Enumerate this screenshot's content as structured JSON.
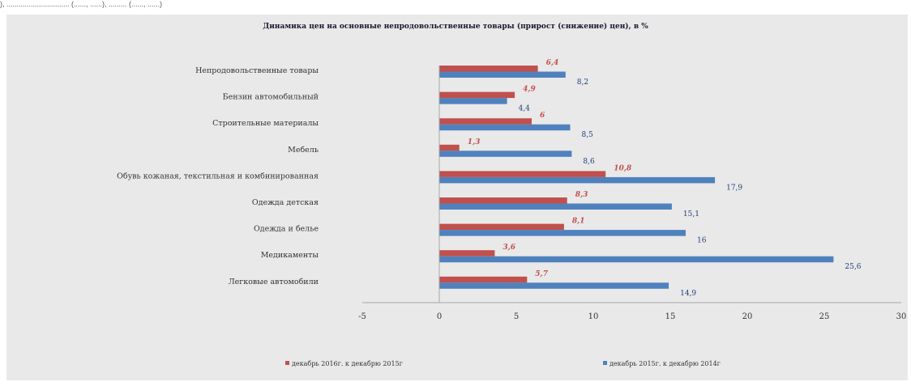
{
  "top_strip_text": "), ............................... (......, ......), ......... (......, ......)",
  "chart_data": {
    "type": "bar",
    "orientation": "horizontal",
    "title": "Динамика цен на основные непродовольственные товары (прирост (снижение) цен), в %",
    "categories": [
      "Непродовольственные товары",
      "Бензин автомобильный",
      "Строительные материалы",
      "Мебель",
      "Обувь кожаная, текстильная и комбинированная",
      "Одежда детская",
      "Одежда и белье",
      "Медикаменты",
      "Легковые автомобили"
    ],
    "series": [
      {
        "name": "декабрь 2016г. к декабрю 2015г",
        "color": "#c0504d",
        "values": [
          6.4,
          4.9,
          6,
          1.3,
          10.8,
          8.3,
          8.1,
          3.6,
          5.7
        ],
        "labels": [
          "6,4",
          "4,9",
          "6",
          "1,3",
          "10,8",
          "8,3",
          "8,1",
          "3,6",
          "5,7"
        ]
      },
      {
        "name": "декабрь 2015г. к декабрю 2014г",
        "color": "#4f81bd",
        "values": [
          8.2,
          4.4,
          8.5,
          8.6,
          17.9,
          15.1,
          16,
          25.6,
          14.9
        ],
        "labels": [
          "8,2",
          "4,4",
          "8,5",
          "8,6",
          "17,9",
          "15,1",
          "16",
          "25,6",
          "14,9"
        ]
      }
    ],
    "xlim": [
      -5,
      30
    ],
    "xticks": [
      -5,
      0,
      5,
      10,
      15,
      20,
      25,
      30
    ],
    "grid": false,
    "legend_position": "bottom"
  }
}
